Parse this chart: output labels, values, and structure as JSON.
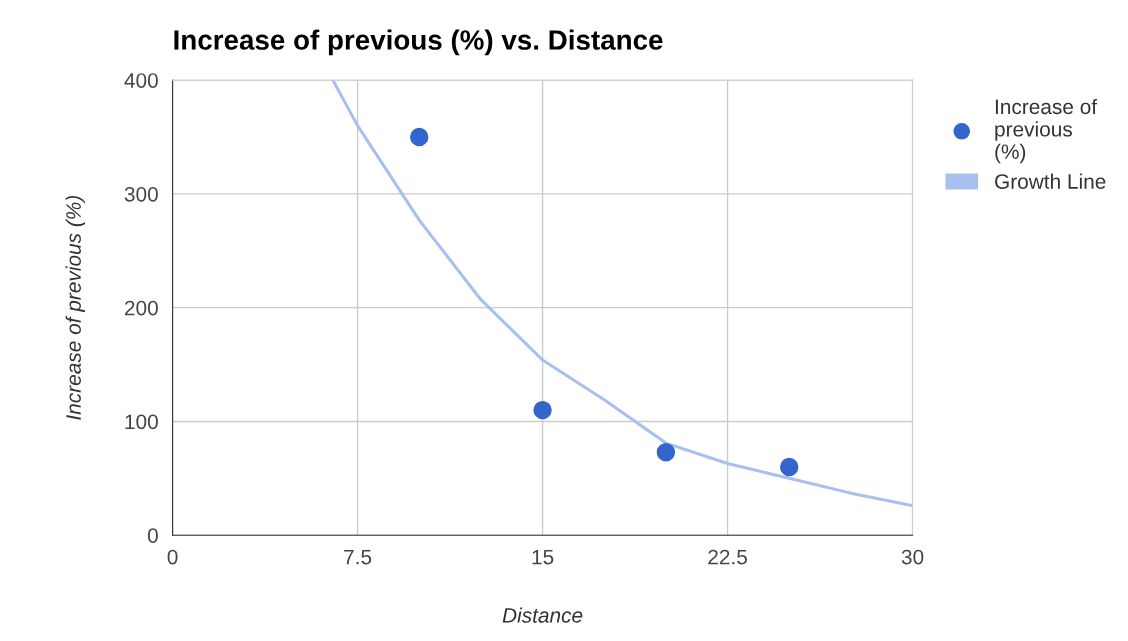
{
  "chart_data": {
    "type": "scatter",
    "title": "Increase of previous (%) vs. Distance",
    "xlabel": "Distance",
    "ylabel": "Increase of previous (%)",
    "xlim": [
      0,
      30
    ],
    "xticks": [
      0,
      7.5,
      15,
      22.5,
      30
    ],
    "ylim": [
      0,
      400
    ],
    "yticks": [
      0,
      100,
      200,
      300,
      400
    ],
    "grid": true,
    "legend": "right",
    "series": [
      {
        "name": "Increase of previous (%)",
        "marker": "circle",
        "color": "#3366cc",
        "x": [
          10,
          15,
          20,
          25
        ],
        "values": [
          350,
          110,
          73,
          60
        ]
      },
      {
        "name": "Growth Line",
        "type": "line",
        "color": "#a8bff0",
        "x": [
          6.5,
          7.5,
          10,
          12.5,
          15,
          17.5,
          20,
          22.5,
          25,
          27.5,
          30
        ],
        "values": [
          400,
          360,
          277,
          207,
          154,
          119,
          81,
          63,
          50,
          37,
          26
        ]
      }
    ]
  }
}
